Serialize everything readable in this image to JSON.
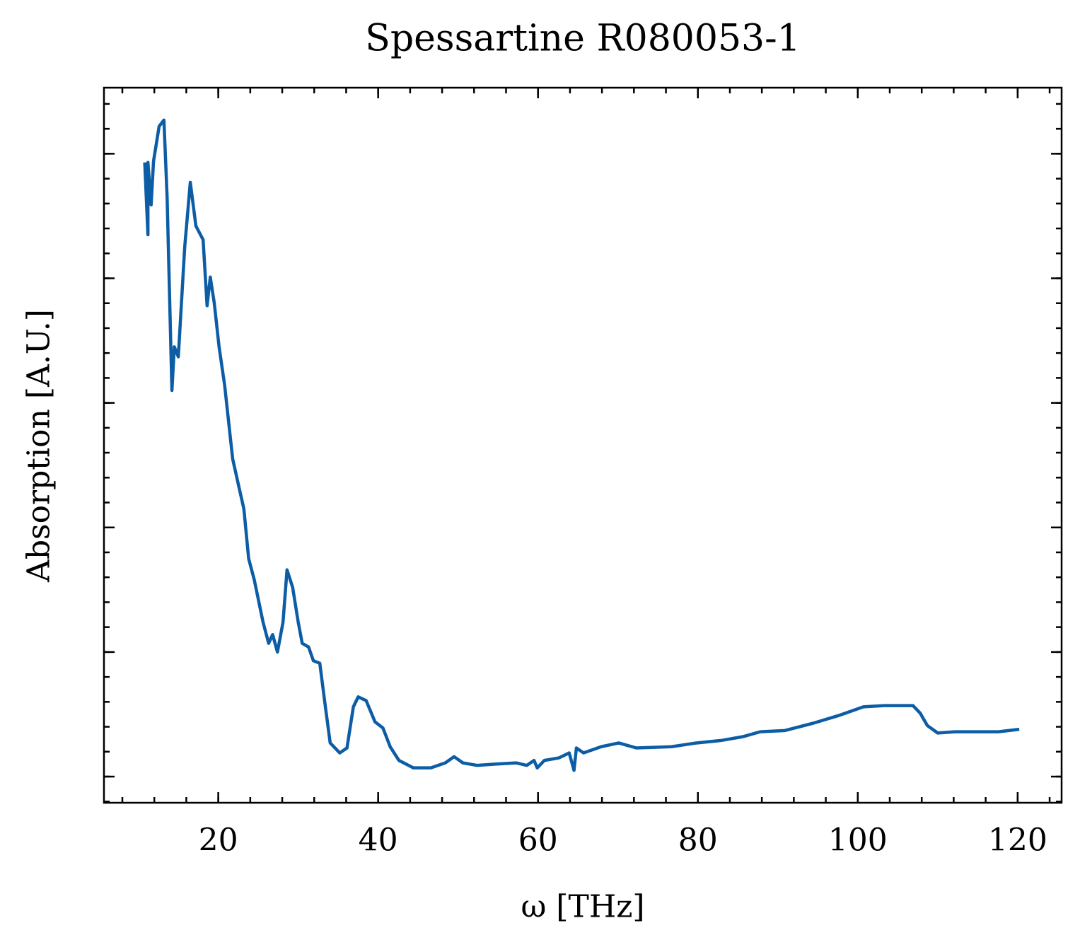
{
  "chart_data": {
    "type": "line",
    "title": "Spessartine R080053-1",
    "x_label": "ω [THz]",
    "y_label": "Absorption [A.U.]",
    "xlim": [
      5.7,
      125.5
    ],
    "xticks": [
      20,
      40,
      60,
      80,
      100,
      120
    ],
    "ylim": [
      -0.21,
      5.53
    ],
    "yticks": [
      0,
      1,
      2,
      3,
      4,
      5
    ],
    "grid": false,
    "series": [
      {
        "name": "Spessartine R080053-1",
        "color": "#0c5da5",
        "x": [
          10.8,
          11.2,
          11.2,
          11.6,
          11.9,
          12.3,
          12.6,
          13.2,
          13.6,
          14.2,
          14.5,
          15.0,
          15.8,
          16.5,
          17.2,
          18.1,
          18.6,
          19.0,
          19.5,
          20.1,
          20.8,
          21.8,
          22.6,
          23.2,
          23.8,
          24.5,
          25.6,
          26.3,
          26.8,
          27.4,
          28.1,
          28.6,
          29.3,
          30.0,
          30.5,
          31.3,
          31.9,
          32.7,
          33.4,
          34.0,
          35.2,
          36.1,
          36.9,
          37.5,
          38.5,
          39.6,
          40.6,
          41.5,
          42.6,
          44.4,
          46.6,
          48.4,
          49.5,
          50.6,
          52.4,
          54.6,
          57.3,
          58.6,
          59.5,
          59.9,
          60.8,
          62.6,
          63.9,
          64.5,
          64.8,
          65.7,
          67.9,
          70.1,
          72.3,
          76.7,
          79.8,
          82.9,
          85.6,
          87.8,
          90.9,
          94.5,
          97.6,
          100.7,
          103.3,
          106.9,
          107.8,
          108.7,
          110.0,
          112.2,
          114.9,
          117.6,
          120.2
        ],
        "values": [
          4.93,
          4.35,
          4.93,
          4.59,
          4.94,
          5.1,
          5.22,
          5.27,
          4.65,
          3.1,
          3.45,
          3.37,
          4.25,
          4.77,
          4.42,
          4.31,
          3.78,
          4.01,
          3.8,
          3.45,
          3.14,
          2.55,
          2.32,
          2.15,
          1.75,
          1.58,
          1.24,
          1.07,
          1.14,
          1.0,
          1.24,
          1.66,
          1.52,
          1.24,
          1.07,
          1.04,
          0.93,
          0.91,
          0.56,
          0.27,
          0.19,
          0.23,
          0.56,
          0.64,
          0.61,
          0.44,
          0.39,
          0.24,
          0.13,
          0.07,
          0.07,
          0.11,
          0.16,
          0.11,
          0.09,
          0.1,
          0.11,
          0.09,
          0.13,
          0.07,
          0.13,
          0.15,
          0.19,
          0.05,
          0.23,
          0.19,
          0.24,
          0.27,
          0.23,
          0.24,
          0.27,
          0.29,
          0.32,
          0.36,
          0.37,
          0.43,
          0.49,
          0.56,
          0.57,
          0.57,
          0.51,
          0.41,
          0.35,
          0.36,
          0.36,
          0.36,
          0.38
        ]
      }
    ]
  }
}
